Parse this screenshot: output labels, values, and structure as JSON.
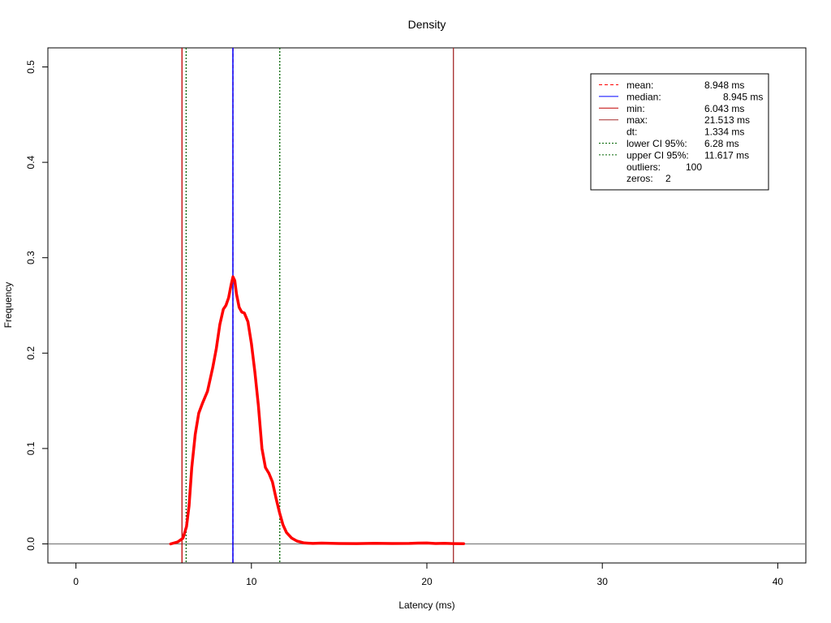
{
  "chart_data": {
    "type": "line",
    "title": "Density",
    "xlabel": "Latency (ms)",
    "ylabel": "Frequency",
    "xlim": [
      -1.6,
      41.6
    ],
    "ylim": [
      -0.02,
      0.52
    ],
    "x_ticks": [
      0,
      10,
      20,
      30,
      40
    ],
    "y_ticks": [
      0.0,
      0.1,
      0.2,
      0.3,
      0.4,
      0.5
    ],
    "x_tick_labels": [
      "0",
      "10",
      "20",
      "30",
      "40"
    ],
    "y_tick_labels": [
      "0.0",
      "0.1",
      "0.2",
      "0.3",
      "0.4",
      "0.5"
    ],
    "grid": false,
    "legend_position": "top-right",
    "baseline_y": 0,
    "series": [
      {
        "color": "#ff0000",
        "x": [
          5.4,
          5.8,
          6.1,
          6.3,
          6.45,
          6.6,
          6.8,
          7.0,
          7.2,
          7.5,
          7.8,
          8.0,
          8.2,
          8.4,
          8.55,
          8.7,
          8.85,
          8.95,
          9.05,
          9.15,
          9.3,
          9.45,
          9.6,
          9.8,
          10.0,
          10.2,
          10.4,
          10.6,
          10.8,
          11.0,
          11.2,
          11.4,
          11.6,
          11.8,
          12.0,
          12.3,
          12.6,
          13.0,
          13.5,
          14.0,
          15.0,
          16.0,
          17.0,
          18.0,
          19.0,
          19.5,
          20.0,
          20.5,
          21.0,
          21.5,
          22.1
        ],
        "y": [
          0.0,
          0.002,
          0.006,
          0.018,
          0.04,
          0.08,
          0.115,
          0.137,
          0.147,
          0.16,
          0.185,
          0.205,
          0.23,
          0.246,
          0.25,
          0.258,
          0.272,
          0.28,
          0.276,
          0.262,
          0.248,
          0.243,
          0.242,
          0.233,
          0.21,
          0.18,
          0.145,
          0.1,
          0.08,
          0.074,
          0.065,
          0.048,
          0.033,
          0.02,
          0.012,
          0.006,
          0.003,
          0.001,
          0.0005,
          0.0008,
          0.0004,
          0.0003,
          0.0006,
          0.0004,
          0.0005,
          0.0008,
          0.0009,
          0.0004,
          0.0006,
          0.0003,
          0.0002
        ]
      }
    ],
    "vlines": [
      {
        "key": "mean",
        "x": 8.948,
        "color": "#ff0000",
        "dash": "dashed"
      },
      {
        "key": "median",
        "x": 8.945,
        "color": "#0000ff",
        "dash": "solid"
      },
      {
        "key": "min",
        "x": 6.043,
        "color": "#c00000",
        "dash": "solid"
      },
      {
        "key": "max",
        "x": 21.513,
        "color": "#a52a2a",
        "dash": "solid"
      },
      {
        "key": "lower_ci",
        "x": 6.28,
        "color": "#006400",
        "dash": "dotted"
      },
      {
        "key": "upper_ci",
        "x": 11.617,
        "color": "#006400",
        "dash": "dotted"
      }
    ],
    "legend": [
      {
        "label": "mean:",
        "value": "8.948 ms",
        "color": "#ff0000",
        "dash": "dashed"
      },
      {
        "label": "median:",
        "value": "8.945 ms",
        "color": "#0000ff",
        "dash": "solid"
      },
      {
        "label": "min:",
        "value": "6.043 ms",
        "color": "#c00000",
        "dash": "solid"
      },
      {
        "label": "max:",
        "value": "21.513 ms",
        "color": "#a52a2a",
        "dash": "solid"
      },
      {
        "label": "dt:",
        "value": "1.334 ms",
        "color": "",
        "dash": "none"
      },
      {
        "label": "lower CI 95%:",
        "value": "6.28 ms",
        "color": "#006400",
        "dash": "dotted"
      },
      {
        "label": "upper CI 95%:",
        "value": "11.617 ms",
        "color": "#006400",
        "dash": "dotted"
      },
      {
        "label": "outliers:",
        "value": "100",
        "color": "",
        "dash": "none"
      },
      {
        "label": "zeros:",
        "value": "2",
        "color": "",
        "dash": "none"
      }
    ]
  }
}
